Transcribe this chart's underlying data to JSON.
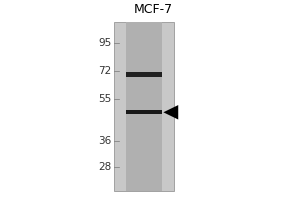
{
  "title": "MCF-7",
  "mw_markers": [
    95,
    72,
    55,
    36,
    28
  ],
  "band1_mw": 70,
  "band2_mw": 48,
  "band_color": "#111111",
  "outer_bg": "#ffffff",
  "gel_bg": "#c8c8c8",
  "lane_bg": "#b0b0b0",
  "marker_color": "#333333",
  "title_fontsize": 9,
  "marker_fontsize": 7.5,
  "fig_width": 3.0,
  "fig_height": 2.0
}
